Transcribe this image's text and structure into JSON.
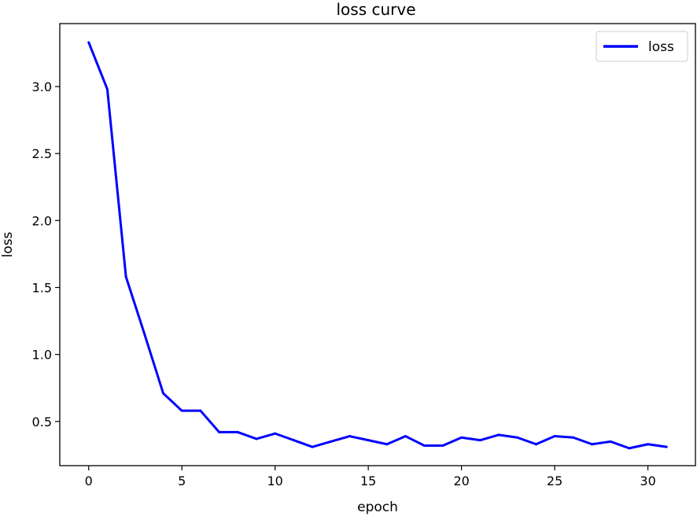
{
  "chart_data": {
    "type": "line",
    "title": "loss curve",
    "xlabel": "epoch",
    "ylabel": "loss",
    "xlim": [
      -1.55,
      32.55
    ],
    "ylim": [
      0.17,
      3.47
    ],
    "xticks": [
      0,
      5,
      10,
      15,
      20,
      25,
      30
    ],
    "yticks": [
      0.5,
      1.0,
      1.5,
      2.0,
      2.5,
      3.0
    ],
    "ytick_labels": [
      "0.5",
      "1.0",
      "1.5",
      "2.0",
      "2.5",
      "3.0"
    ],
    "grid": false,
    "legend_position": "upper right",
    "series": [
      {
        "name": "loss",
        "color": "#0000ff",
        "x": [
          0,
          1,
          2,
          3,
          4,
          5,
          6,
          7,
          8,
          9,
          10,
          11,
          12,
          13,
          14,
          15,
          16,
          17,
          18,
          19,
          20,
          21,
          22,
          23,
          24,
          25,
          26,
          27,
          28,
          29,
          30,
          31
        ],
        "values": [
          3.33,
          2.98,
          1.58,
          1.15,
          0.71,
          0.58,
          0.58,
          0.42,
          0.42,
          0.37,
          0.41,
          0.36,
          0.31,
          0.35,
          0.39,
          0.36,
          0.33,
          0.39,
          0.32,
          0.32,
          0.38,
          0.36,
          0.4,
          0.38,
          0.33,
          0.39,
          0.38,
          0.33,
          0.35,
          0.3,
          0.33,
          0.31
        ]
      }
    ]
  }
}
